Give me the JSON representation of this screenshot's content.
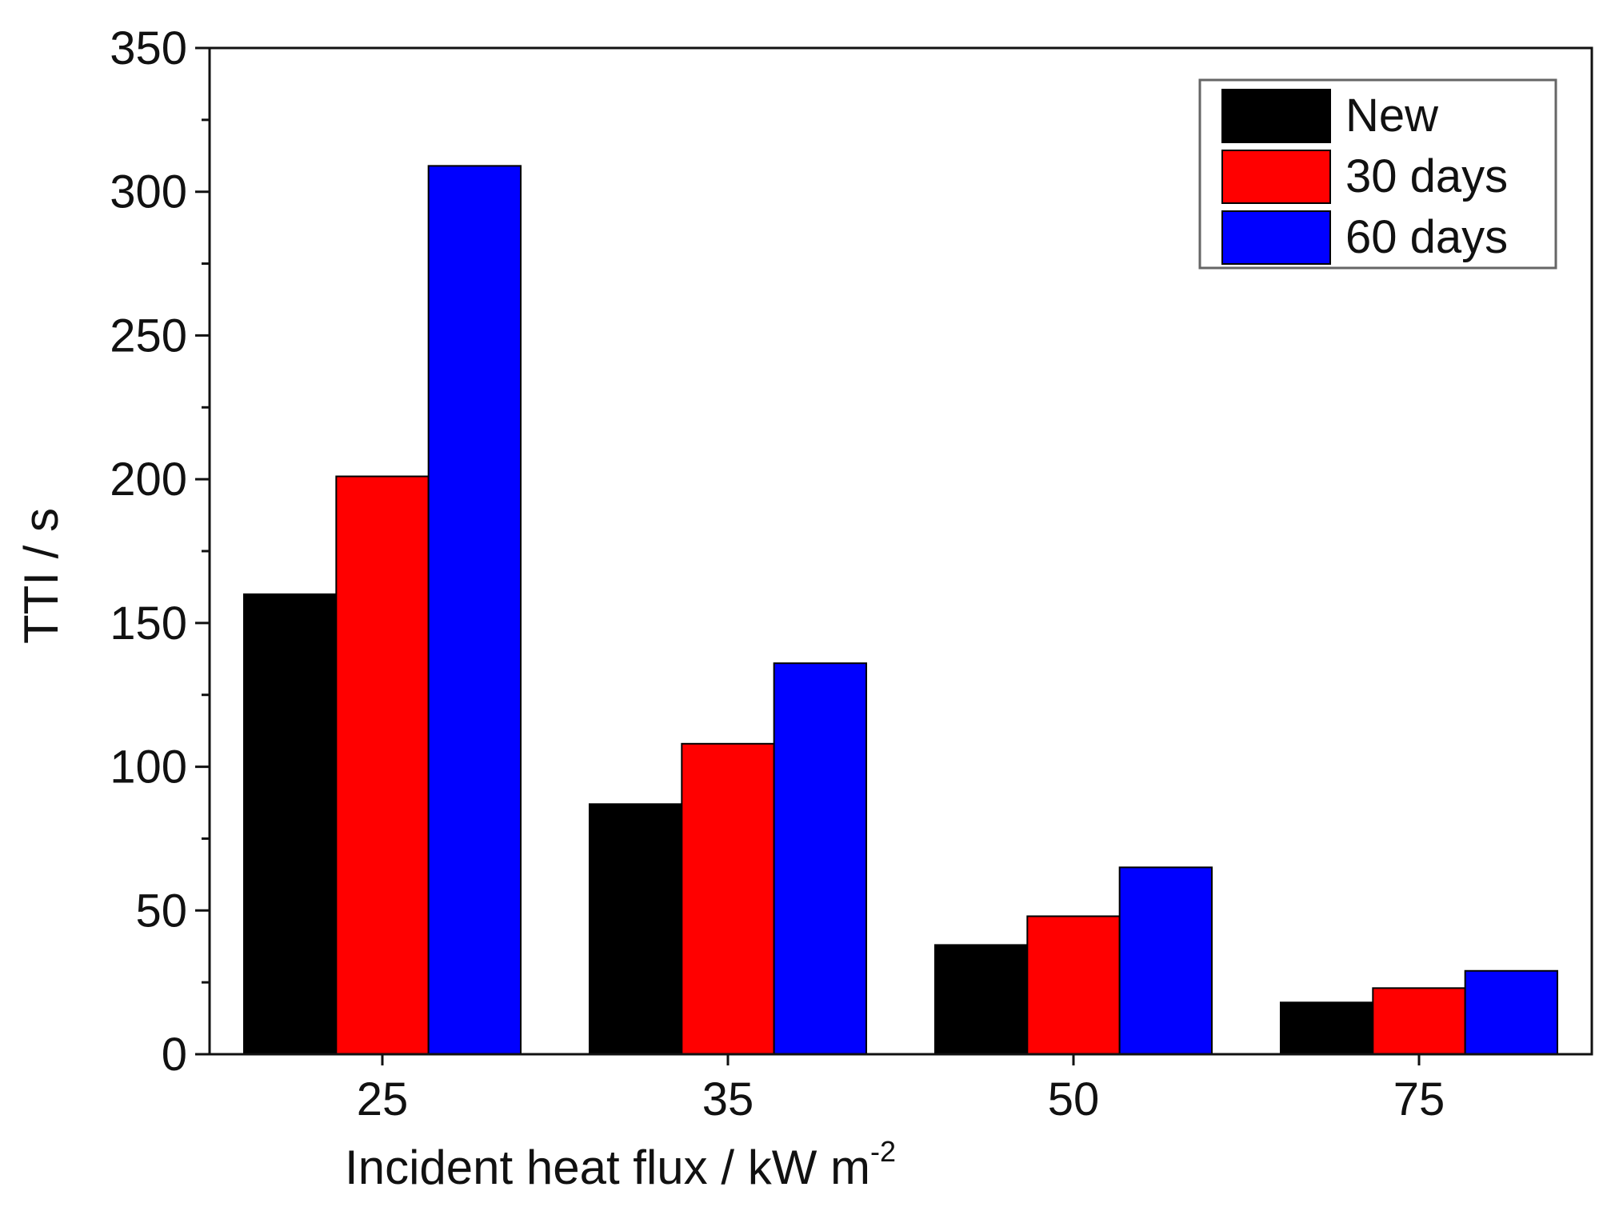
{
  "chart_data": {
    "type": "bar",
    "title": "",
    "xlabel": "Incident heat flux / kW m",
    "xlabel_superscript": "-2",
    "ylabel": "TTI / s",
    "categories": [
      "25",
      "35",
      "50",
      "75"
    ],
    "series": [
      {
        "name": "New",
        "color": "#000000",
        "values": [
          160,
          87,
          38,
          18
        ]
      },
      {
        "name": "30 days",
        "color": "#ff0000",
        "values": [
          201,
          108,
          48,
          23
        ]
      },
      {
        "name": "60 days",
        "color": "#0000ff",
        "values": [
          309,
          136,
          65,
          29
        ]
      }
    ],
    "ylim": [
      0,
      350
    ],
    "yticks": [
      0,
      50,
      100,
      150,
      200,
      250,
      300,
      350
    ],
    "grid": false,
    "legend_position": "top-right"
  }
}
